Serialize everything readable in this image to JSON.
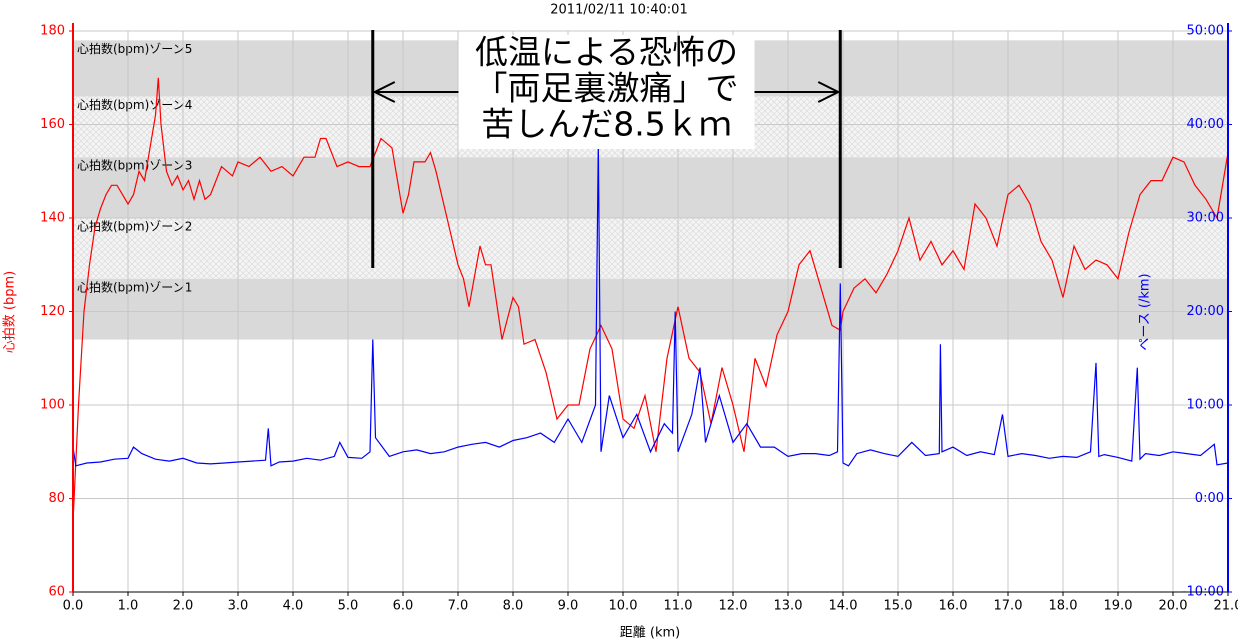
{
  "chart_data": {
    "type": "line",
    "title": "2011/02/11 10:40:01",
    "xlabel": "距離 (km)",
    "ylabel": "心拍数 (bpm)",
    "y2label": "ペース (/km)",
    "xlim": [
      0,
      21
    ],
    "xticks": [
      {
        "value": 0,
        "label": "0.0"
      },
      {
        "value": 1,
        "label": "1.0"
      },
      {
        "value": 2,
        "label": "2.0"
      },
      {
        "value": 3,
        "label": "3.0"
      },
      {
        "value": 4,
        "label": "4.0"
      },
      {
        "value": 5,
        "label": "5.0"
      },
      {
        "value": 6,
        "label": "6.0"
      },
      {
        "value": 7,
        "label": "7.0"
      },
      {
        "value": 8,
        "label": "8.0"
      },
      {
        "value": 9,
        "label": "9.0"
      },
      {
        "value": 10,
        "label": "10.0"
      },
      {
        "value": 11,
        "label": "11.0"
      },
      {
        "value": 12,
        "label": "12.0"
      },
      {
        "value": 13,
        "label": "13.0"
      },
      {
        "value": 14,
        "label": "14.0"
      },
      {
        "value": 15,
        "label": "15.0"
      },
      {
        "value": 16,
        "label": "16.0"
      },
      {
        "value": 17,
        "label": "17.0"
      },
      {
        "value": 18,
        "label": "18.0"
      },
      {
        "value": 19,
        "label": "19.0"
      },
      {
        "value": 20,
        "label": "20.0"
      },
      {
        "value": 21,
        "label": "21.0"
      }
    ],
    "ylim": [
      60,
      180
    ],
    "yticks": [
      60,
      80,
      100,
      120,
      140,
      160,
      180
    ],
    "y2lim": [
      -10,
      50
    ],
    "y2ticks": [
      {
        "value": -10,
        "label": "-10:00"
      },
      {
        "value": 0,
        "label": "0:00"
      },
      {
        "value": 10,
        "label": "10:00"
      },
      {
        "value": 20,
        "label": "20:00"
      },
      {
        "value": 30,
        "label": "30:00"
      },
      {
        "value": 40,
        "label": "40:00"
      },
      {
        "value": 50,
        "label": "50:00"
      }
    ],
    "grid": true,
    "zones": [
      {
        "label": "心拍数(bpm)ゾーン5",
        "range": [
          166,
          178
        ],
        "style": "solid"
      },
      {
        "label": "心拍数(bpm)ゾーン4",
        "range": [
          153,
          166
        ],
        "style": "hatched"
      },
      {
        "label": "心拍数(bpm)ゾーン3",
        "range": [
          140,
          153
        ],
        "style": "solid"
      },
      {
        "label": "心拍数(bpm)ゾーン2",
        "range": [
          127,
          140
        ],
        "style": "hatched"
      },
      {
        "label": "心拍数(bpm)ゾーン1",
        "range": [
          114,
          127
        ],
        "style": "solid"
      }
    ],
    "annotation": {
      "lines": [
        "低温による恐怖の",
        "「両足裏激痛」で",
        "苦しんだ8.5ｋｍ"
      ],
      "start": 5.45,
      "end": 13.95
    },
    "series": [
      {
        "color": "#ff0000",
        "x": [
          0,
          0.1,
          0.2,
          0.3,
          0.4,
          0.5,
          0.6,
          0.7,
          0.8,
          0.9,
          1,
          1.1,
          1.2,
          1.3,
          1.4,
          1.5,
          1.55,
          1.6,
          1.7,
          1.8,
          1.9,
          2,
          2.1,
          2.2,
          2.3,
          2.4,
          2.5,
          2.6,
          2.7,
          2.8,
          2.9,
          3,
          3.2,
          3.4,
          3.6,
          3.8,
          4,
          4.2,
          4.4,
          4.5,
          4.6,
          4.8,
          5,
          5.2,
          5.4,
          5.5,
          5.6,
          5.8,
          6,
          6.1,
          6.2,
          6.4,
          6.5,
          6.6,
          6.8,
          7,
          7.1,
          7.2,
          7.4,
          7.5,
          7.6,
          7.8,
          8,
          8.1,
          8.2,
          8.4,
          8.6,
          8.8,
          9,
          9.2,
          9.4,
          9.6,
          9.8,
          10,
          10.2,
          10.4,
          10.6,
          10.8,
          11,
          11.2,
          11.4,
          11.6,
          11.8,
          12,
          12.2,
          12.4,
          12.6,
          12.8,
          13,
          13.2,
          13.4,
          13.6,
          13.8,
          13.95,
          14,
          14.2,
          14.4,
          14.6,
          14.8,
          15,
          15.2,
          15.4,
          15.6,
          15.8,
          16,
          16.2,
          16.4,
          16.6,
          16.8,
          17,
          17.2,
          17.4,
          17.6,
          17.8,
          18,
          18.2,
          18.4,
          18.6,
          18.8,
          19,
          19.2,
          19.4,
          19.6,
          19.8,
          20,
          20.2,
          20.4,
          20.6,
          20.8,
          21
        ],
        "values": [
          75,
          100,
          120,
          130,
          138,
          142,
          145,
          147,
          147,
          145,
          143,
          145,
          150,
          148,
          155,
          162,
          170,
          160,
          150,
          147,
          149,
          146,
          148,
          144,
          148,
          144,
          145,
          148,
          151,
          150,
          149,
          152,
          151,
          153,
          150,
          151,
          149,
          153,
          153,
          157,
          157,
          151,
          152,
          151,
          151,
          154,
          157,
          155,
          141,
          145,
          152,
          152,
          154,
          150,
          140,
          130,
          127,
          121,
          134,
          130,
          130,
          114,
          123,
          121,
          113,
          114,
          107,
          97,
          100,
          100,
          112,
          117,
          112,
          97,
          95,
          102,
          90,
          110,
          121,
          110,
          107,
          96,
          108,
          100,
          90,
          110,
          104,
          115,
          120,
          130,
          133,
          125,
          117,
          116,
          120,
          125,
          127,
          124,
          128,
          133,
          140,
          131,
          135,
          130,
          133,
          129,
          143,
          140,
          134,
          145,
          147,
          143,
          135,
          131,
          123,
          134,
          129,
          131,
          130,
          127,
          137,
          145,
          148,
          148,
          153,
          152,
          147,
          144,
          140,
          154
        ]
      },
      {
        "color": "#0000ff",
        "axis": "y2",
        "x": [
          0,
          0.05,
          0.25,
          0.5,
          0.75,
          1,
          1.1,
          1.25,
          1.5,
          1.75,
          2,
          2.25,
          2.5,
          2.75,
          3,
          3.25,
          3.5,
          3.55,
          3.6,
          3.75,
          4,
          4.25,
          4.5,
          4.75,
          4.85,
          5,
          5.25,
          5.4,
          5.45,
          5.5,
          5.75,
          6,
          6.25,
          6.5,
          6.75,
          7,
          7.25,
          7.5,
          7.75,
          8,
          8.25,
          8.5,
          8.75,
          9,
          9.25,
          9.5,
          9.55,
          9.6,
          9.75,
          10,
          10.25,
          10.5,
          10.75,
          10.9,
          10.95,
          11,
          11.25,
          11.4,
          11.5,
          11.75,
          12,
          12.25,
          12.5,
          12.75,
          13,
          13.25,
          13.5,
          13.75,
          13.9,
          13.95,
          14,
          14.1,
          14.25,
          14.5,
          14.75,
          15,
          15.25,
          15.5,
          15.75,
          15.77,
          15.8,
          16,
          16.25,
          16.5,
          16.75,
          16.9,
          17,
          17.25,
          17.5,
          17.75,
          18,
          18.25,
          18.5,
          18.6,
          18.65,
          18.75,
          19,
          19.25,
          19.35,
          19.4,
          19.5,
          19.75,
          20,
          20.25,
          20.5,
          20.75,
          20.8,
          21
        ],
        "values": [
          5.5,
          3.5,
          3.8,
          3.9,
          4.2,
          4.3,
          5.5,
          4.8,
          4.2,
          4,
          4.3,
          3.8,
          3.7,
          3.8,
          3.9,
          4,
          4.1,
          7.5,
          3.5,
          3.9,
          4,
          4.3,
          4.1,
          4.5,
          6,
          4.4,
          4.3,
          5,
          17,
          6.5,
          4.5,
          5,
          5.2,
          4.8,
          5,
          5.5,
          5.8,
          6,
          5.5,
          6.2,
          6.5,
          7,
          6,
          8.5,
          6,
          10,
          38,
          5,
          11,
          6.5,
          9,
          5,
          8,
          7,
          20,
          5,
          9,
          14,
          6,
          11,
          6,
          8,
          5.5,
          5.5,
          4.5,
          4.8,
          4.8,
          4.6,
          5,
          23,
          3.8,
          3.5,
          4.8,
          5.2,
          4.8,
          4.5,
          6,
          4.6,
          4.8,
          16.5,
          5,
          5.5,
          4.6,
          5,
          4.7,
          9,
          4.5,
          4.8,
          4.6,
          4.3,
          4.5,
          4.4,
          5,
          14.5,
          4.5,
          4.7,
          4.4,
          4,
          14,
          4.2,
          4.8,
          4.6,
          5,
          4.8,
          4.6,
          5.8,
          3.6,
          3.8
        ]
      }
    ]
  }
}
